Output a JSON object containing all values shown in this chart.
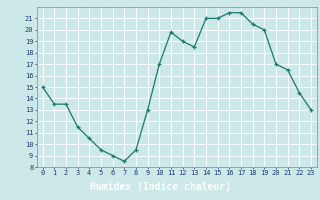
{
  "x": [
    0,
    1,
    2,
    3,
    4,
    5,
    6,
    7,
    8,
    9,
    10,
    11,
    12,
    13,
    14,
    15,
    16,
    17,
    18,
    19,
    20,
    21,
    22,
    23
  ],
  "y": [
    15,
    13.5,
    13.5,
    11.5,
    10.5,
    9.5,
    9.0,
    8.5,
    9.5,
    13.0,
    17.0,
    19.8,
    19.0,
    18.5,
    21.0,
    21.0,
    21.5,
    21.5,
    20.5,
    20.0,
    17.0,
    16.5,
    14.5,
    13.0
  ],
  "xlabel": "Humidex (Indice chaleur)",
  "ylim": [
    8,
    22
  ],
  "xlim": [
    -0.5,
    23.5
  ],
  "yticks": [
    8,
    9,
    10,
    11,
    12,
    13,
    14,
    15,
    16,
    17,
    18,
    19,
    20,
    21
  ],
  "xticks": [
    0,
    1,
    2,
    3,
    4,
    5,
    6,
    7,
    8,
    9,
    10,
    11,
    12,
    13,
    14,
    15,
    16,
    17,
    18,
    19,
    20,
    21,
    22,
    23
  ],
  "line_color": "#1a7a6e",
  "marker_color": "#1a7a6e",
  "bg_color": "#cce8e8",
  "plot_bg_color": "#cce8e8",
  "grid_color": "#ffffff",
  "tick_label_color": "#1a3a6e",
  "xlabel_color": "#000080",
  "xlabel_bg": "#4a6a8a",
  "bottom_bar_color": "#4a5a7a"
}
